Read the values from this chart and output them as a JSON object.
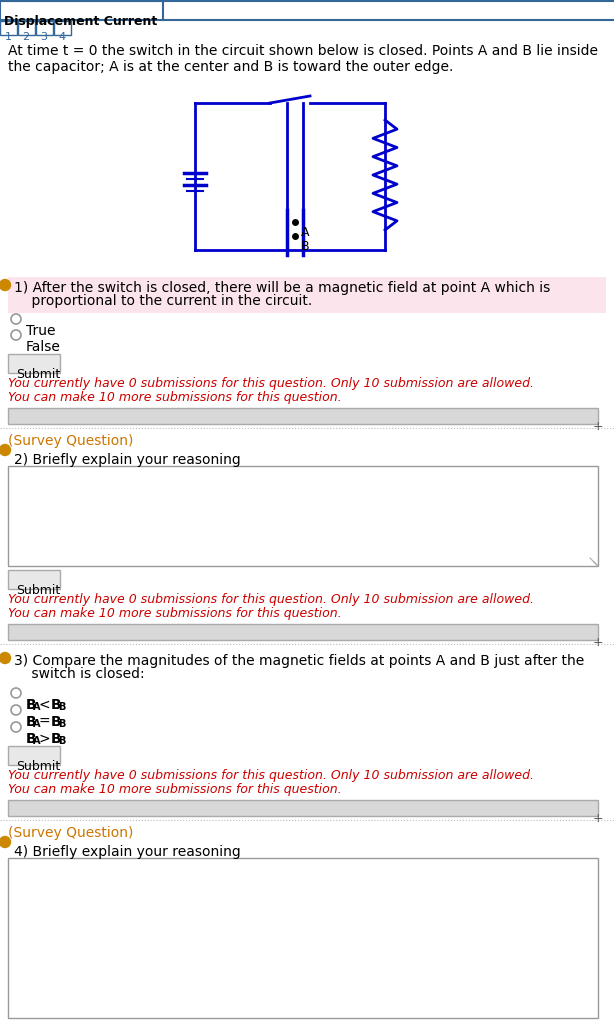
{
  "title": "Displacement Current",
  "tab_labels": [
    "1",
    "2",
    "3",
    "4"
  ],
  "intro_text": "At time t = 0 the switch in the circuit shown below is closed. Points A and B lie inside\nthe capacitor; A is at the center and B is toward the outer edge.",
  "q1_text_line1": "1) After the switch is closed, there will be a magnetic field at point A which is",
  "q1_text_line2": "    proportional to the current in the circuit.",
  "q1_highlight": "#fce4ec",
  "q1_options": [
    "True",
    "False"
  ],
  "submit_btn_color": "#e8e8e8",
  "submit_btn_border": "#aaaaaa",
  "red_text_line1": "You currently have 0 submissions for this question. Only 10 submission are allowed.",
  "red_text_line2": "You can make 10 more submissions for this question.",
  "red_color": "#cc0000",
  "survey_color": "#cc7700",
  "survey_label": "(Survey Question)",
  "q2_text": "2) Briefly explain your reasoning",
  "q3_text_line1": "3) Compare the magnitudes of the magnetic fields at points A and B just after the",
  "q3_text_line2": "    switch is closed:",
  "q4_text": "4) Briefly explain your reasoning",
  "bg_color": "#ffffff",
  "border_color": "#336699",
  "circuit_color": "#0000cc",
  "radio_color": "#999999",
  "progressbar_color": "#d8d8d8",
  "progressbar_border": "#aaaaaa",
  "textarea_border": "#999999",
  "plus_color": "#555555"
}
